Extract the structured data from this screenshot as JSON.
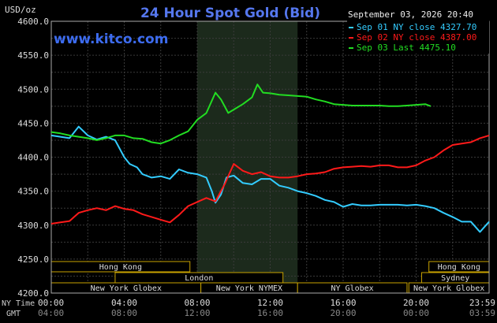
{
  "title": "24 Hour Spot Gold (Bid)",
  "unit_label": "USD/oz",
  "brand": "www.kitco.com",
  "timestamp": "September 03, 2026 20:40",
  "legend": [
    {
      "label": "Sep 01 NY close 4327.70",
      "color": "#33ccff"
    },
    {
      "label": "Sep 02 NY close 4387.00",
      "color": "#ff1a1a"
    },
    {
      "label": "Sep 03 Last 4475.10",
      "color": "#22dd22"
    }
  ],
  "row_labels": {
    "ny_time": "NY Time",
    "gmt": "GMT"
  },
  "ny_time_ticks": [
    "00:00",
    "04:00",
    "08:00",
    "12:00",
    "16:00",
    "20:00",
    "23:59"
  ],
  "gmt_ticks": [
    "04:00",
    "08:00",
    "12:00",
    "16:00",
    "20:00",
    "00:00",
    "03:59"
  ],
  "sessions": {
    "row1": [
      {
        "label": "Hong Kong",
        "start": 0,
        "end": 7.6
      },
      {
        "label": "Hong Kong",
        "start": 20.7,
        "end": 24
      }
    ],
    "row2": [
      {
        "label": "London",
        "start": 3.5,
        "end": 12.7
      },
      {
        "label": "Sydney",
        "start": 20.3,
        "end": 24
      }
    ],
    "row3": [
      {
        "label": "New York Globex",
        "start": 0,
        "end": 8.2
      },
      {
        "label": "New York NYMEX",
        "start": 8.2,
        "end": 13.5
      },
      {
        "label": "NY Globex",
        "start": 13.5,
        "end": 19.5
      },
      {
        "label": "New York Globex",
        "start": 19.6,
        "end": 24
      }
    ]
  },
  "chart_data": {
    "type": "line",
    "title": "24 Hour Spot Gold (Bid)",
    "ylabel": "USD/oz",
    "x_unit": "NY time, hours",
    "xlim": [
      0,
      24
    ],
    "ylim": [
      4200,
      4600
    ],
    "yticks": [
      4200.0,
      4250.0,
      4300.0,
      4350.0,
      4400.0,
      4450.0,
      4500.0,
      4550.0,
      4600.0
    ],
    "highlight_x_range": [
      8,
      13.5
    ],
    "grid": true,
    "series": [
      {
        "name": "Sep 01 NY close 4327.70",
        "color": "#33ccff",
        "x": [
          0,
          0.5,
          1,
          1.5,
          2,
          2.5,
          3,
          3.5,
          4,
          4.3,
          4.7,
          5,
          5.5,
          6,
          6.5,
          7,
          7.5,
          8,
          8.5,
          8.8,
          9,
          9.3,
          9.6,
          10,
          10.5,
          11,
          11.5,
          12,
          12.5,
          13,
          13.5,
          14,
          14.5,
          15,
          15.5,
          16,
          16.5,
          17,
          17.5,
          18,
          18.5,
          19,
          19.5,
          20,
          20.5,
          21,
          21.5,
          22,
          22.5,
          23,
          23.5,
          24
        ],
        "y": [
          4432,
          4430,
          4428,
          4445,
          4432,
          4426,
          4430,
          4425,
          4400,
          4390,
          4385,
          4375,
          4370,
          4372,
          4368,
          4382,
          4377,
          4375,
          4370,
          4350,
          4333,
          4345,
          4370,
          4373,
          4362,
          4360,
          4368,
          4368,
          4358,
          4355,
          4350,
          4347,
          4343,
          4337,
          4334,
          4327,
          4331,
          4329,
          4329,
          4330,
          4330,
          4330,
          4329,
          4330,
          4328,
          4325,
          4318,
          4312,
          4305,
          4305,
          4290,
          4305
        ]
      },
      {
        "name": "Sep 02 NY close 4387.00",
        "color": "#ff1a1a",
        "x": [
          0,
          0.5,
          1,
          1.5,
          2,
          2.5,
          3,
          3.5,
          4,
          4.5,
          5,
          5.5,
          6,
          6.5,
          7,
          7.5,
          8,
          8.5,
          9,
          9.5,
          10,
          10.5,
          11,
          11.5,
          12,
          12.5,
          13,
          13.5,
          14,
          14.5,
          15,
          15.5,
          16,
          16.5,
          17,
          17.5,
          18,
          18.5,
          19,
          19.5,
          20,
          20.5,
          21,
          21.5,
          22,
          22.5,
          23,
          23.5,
          24
        ],
        "y": [
          4302,
          4304,
          4306,
          4318,
          4322,
          4325,
          4322,
          4328,
          4324,
          4322,
          4316,
          4312,
          4308,
          4304,
          4315,
          4328,
          4334,
          4340,
          4335,
          4360,
          4390,
          4380,
          4375,
          4378,
          4372,
          4370,
          4370,
          4372,
          4375,
          4376,
          4378,
          4383,
          4385,
          4386,
          4387,
          4386,
          4388,
          4388,
          4385,
          4385,
          4388,
          4395,
          4400,
          4410,
          4418,
          4420,
          4422,
          4428,
          4432
        ]
      },
      {
        "name": "Sep 03 Last 4475.10",
        "color": "#22dd22",
        "x": [
          0,
          0.5,
          1,
          1.5,
          2,
          2.5,
          3,
          3.5,
          4,
          4.5,
          5,
          5.5,
          6,
          6.5,
          7,
          7.5,
          8,
          8.5,
          9,
          9.3,
          9.7,
          10,
          10.5,
          11,
          11.3,
          11.6,
          12,
          12.5,
          13,
          13.5,
          14,
          14.5,
          15,
          15.5,
          16,
          16.5,
          17,
          17.5,
          18,
          18.5,
          19,
          19.5,
          20,
          20.5,
          20.8
        ],
        "y": [
          4437,
          4435,
          4432,
          4430,
          4428,
          4425,
          4428,
          4432,
          4432,
          4428,
          4427,
          4422,
          4420,
          4425,
          4432,
          4438,
          4455,
          4465,
          4495,
          4485,
          4465,
          4470,
          4478,
          4488,
          4507,
          4495,
          4494,
          4492,
          4491,
          4490,
          4489,
          4485,
          4482,
          4478,
          4477,
          4476,
          4476,
          4476,
          4476,
          4475,
          4475,
          4476,
          4477,
          4478,
          4475
        ]
      }
    ]
  }
}
